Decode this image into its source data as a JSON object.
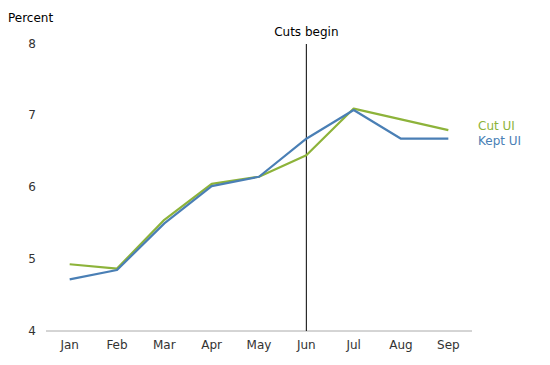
{
  "chart_data": {
    "type": "line",
    "y_label": "Percent",
    "categories": [
      "Jan",
      "Feb",
      "Mar",
      "Apr",
      "May",
      "Jun",
      "Jul",
      "Aug",
      "Sep"
    ],
    "series": [
      {
        "name": "Cut UI",
        "color": "#8db33a",
        "values": [
          4.93,
          4.87,
          5.55,
          6.05,
          6.15,
          6.45,
          7.1,
          6.95,
          6.8
        ]
      },
      {
        "name": "Kept UI",
        "color": "#4a7fb5",
        "values": [
          4.72,
          4.85,
          5.5,
          6.02,
          6.15,
          6.68,
          7.08,
          6.68,
          6.68
        ]
      }
    ],
    "annotations": [
      {
        "text": "Cuts begin",
        "x": "Jun"
      }
    ],
    "ylim": [
      4,
      8
    ],
    "yticks": [
      4,
      5,
      6,
      7,
      8
    ],
    "grid": false
  }
}
